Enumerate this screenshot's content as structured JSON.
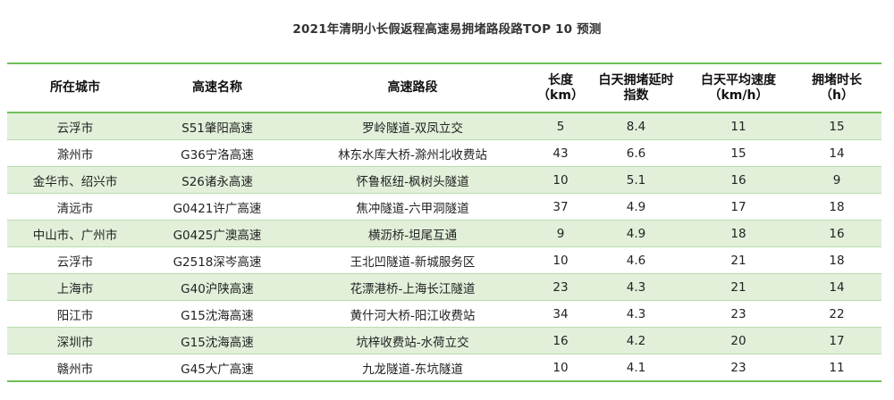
{
  "title": "2021年清明小长假返程高速易拥堵路段路TOP 10 预测",
  "columns": [
    {
      "line1": "所在城市",
      "line2": ""
    },
    {
      "line1": "高速名称",
      "line2": ""
    },
    {
      "line1": "高速路段",
      "line2": ""
    },
    {
      "line1": "长度",
      "line2": "（km）"
    },
    {
      "line1": "白天拥堵延时",
      "line2": "指数"
    },
    {
      "line1": "白天平均速度",
      "line2": "（km/h）"
    },
    {
      "line1": "拥堵时长",
      "line2": "（h）"
    }
  ],
  "rows": [
    {
      "city": "云浮市",
      "highway": "S51肇阳高速",
      "section": "罗岭隧道-双凤立交",
      "length": "5",
      "delay_index": "8.4",
      "avg_speed": "11",
      "duration": "15"
    },
    {
      "city": "滁州市",
      "highway": "G36宁洛高速",
      "section": "林东水库大桥-滁州北收费站",
      "length": "43",
      "delay_index": "6.6",
      "avg_speed": "15",
      "duration": "14"
    },
    {
      "city": "金华市、绍兴市",
      "highway": "S26诸永高速",
      "section": "怀鲁枢纽-枫树头隧道",
      "length": "10",
      "delay_index": "5.1",
      "avg_speed": "16",
      "duration": "9"
    },
    {
      "city": "清远市",
      "highway": "G0421许广高速",
      "section": "焦冲隧道-六甲洞隧道",
      "length": "37",
      "delay_index": "4.9",
      "avg_speed": "17",
      "duration": "18"
    },
    {
      "city": "中山市、广州市",
      "highway": "G0425广澳高速",
      "section": "横沥桥-坦尾互通",
      "length": "9",
      "delay_index": "4.9",
      "avg_speed": "18",
      "duration": "16"
    },
    {
      "city": "云浮市",
      "highway": "G2518深岑高速",
      "section": "王北凹隧道-新城服务区",
      "length": "10",
      "delay_index": "4.6",
      "avg_speed": "21",
      "duration": "18"
    },
    {
      "city": "上海市",
      "highway": "G40沪陕高速",
      "section": "花漂港桥-上海长江隧道",
      "length": "23",
      "delay_index": "4.3",
      "avg_speed": "21",
      "duration": "14"
    },
    {
      "city": "阳江市",
      "highway": "G15沈海高速",
      "section": "黄什河大桥-阳江收费站",
      "length": "34",
      "delay_index": "4.3",
      "avg_speed": "23",
      "duration": "22"
    },
    {
      "city": "深圳市",
      "highway": "G15沈海高速",
      "section": "坑梓收费站-水荷立交",
      "length": "16",
      "delay_index": "4.2",
      "avg_speed": "20",
      "duration": "17"
    },
    {
      "city": "赣州市",
      "highway": "G45大广高速",
      "section": "九龙隧道-东坑隧道",
      "length": "10",
      "delay_index": "4.1",
      "avg_speed": "23",
      "duration": "11"
    }
  ],
  "colors": {
    "accent_green": "#6fbf57",
    "row_band": "#e2f0da"
  }
}
